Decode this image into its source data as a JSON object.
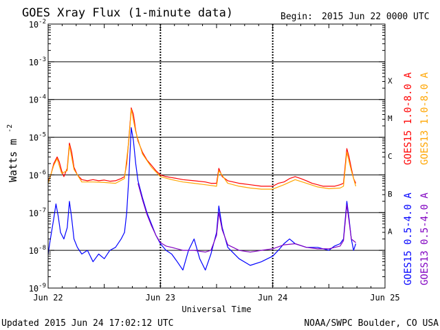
{
  "chart_data": {
    "type": "line",
    "title": "GOES Xray Flux (1-minute data)",
    "begin_label": "Begin:",
    "begin_value": "2015 Jun 22 0000 UTC",
    "xlabel": "Universal Time",
    "ylabel_base": "Watts m",
    "ylabel_exp": "-2",
    "y_scale": "log",
    "ylim": [
      1e-09,
      0.01
    ],
    "xlim_days": [
      0,
      3
    ],
    "x_ticks": [
      {
        "day": 0,
        "label": "Jun 22"
      },
      {
        "day": 1,
        "label": "Jun 23"
      },
      {
        "day": 2,
        "label": "Jun 24"
      },
      {
        "day": 3,
        "label": "Jun 25"
      }
    ],
    "y_ticks": [
      {
        "exp": -2,
        "label": "10",
        "sup": "-2"
      },
      {
        "exp": -3,
        "label": "10",
        "sup": "-3"
      },
      {
        "exp": -4,
        "label": "10",
        "sup": "-4"
      },
      {
        "exp": -5,
        "label": "10",
        "sup": "-5"
      },
      {
        "exp": -6,
        "label": "10",
        "sup": "-6"
      },
      {
        "exp": -7,
        "label": "10",
        "sup": "-7"
      },
      {
        "exp": -8,
        "label": "10",
        "sup": "-8"
      },
      {
        "exp": -9,
        "label": "10",
        "sup": "-9"
      }
    ],
    "flare_classes": [
      {
        "label": "X",
        "exp": -3.5
      },
      {
        "label": "M",
        "exp": -4.5
      },
      {
        "label": "C",
        "exp": -5.5
      },
      {
        "label": "B",
        "exp": -6.5
      },
      {
        "label": "A",
        "exp": -7.5
      }
    ],
    "grid": "horizontal per decade, dashed vertical per day",
    "legend_position": "right",
    "series": [
      {
        "name": "GOES15 1.0-8.0 A",
        "color": "#ff0000",
        "points": [
          [
            0.0,
            7e-07
          ],
          [
            0.02,
            9e-07
          ],
          [
            0.05,
            2e-06
          ],
          [
            0.08,
            3e-06
          ],
          [
            0.1,
            2.2e-06
          ],
          [
            0.12,
            1.3e-06
          ],
          [
            0.14,
            9e-07
          ],
          [
            0.17,
            1.5e-06
          ],
          [
            0.19,
            7e-06
          ],
          [
            0.21,
            4e-06
          ],
          [
            0.23,
            1.6e-06
          ],
          [
            0.26,
            1e-06
          ],
          [
            0.3,
            7.5e-07
          ],
          [
            0.35,
            7e-07
          ],
          [
            0.4,
            7.5e-07
          ],
          [
            0.45,
            7e-07
          ],
          [
            0.5,
            7.3e-07
          ],
          [
            0.55,
            6.8e-07
          ],
          [
            0.6,
            7e-07
          ],
          [
            0.65,
            8e-07
          ],
          [
            0.68,
            9e-07
          ],
          [
            0.7,
            2e-06
          ],
          [
            0.72,
            1e-05
          ],
          [
            0.74,
            6e-05
          ],
          [
            0.76,
            4e-05
          ],
          [
            0.78,
            1.5e-05
          ],
          [
            0.8,
            8e-06
          ],
          [
            0.84,
            4e-06
          ],
          [
            0.88,
            2.5e-06
          ],
          [
            0.92,
            1.8e-06
          ],
          [
            0.96,
            1.3e-06
          ],
          [
            1.0,
            1e-06
          ],
          [
            1.05,
            9e-07
          ],
          [
            1.1,
            8.5e-07
          ],
          [
            1.15,
            8e-07
          ],
          [
            1.2,
            7.5e-07
          ],
          [
            1.3,
            7e-07
          ],
          [
            1.4,
            6.5e-07
          ],
          [
            1.45,
            6e-07
          ],
          [
            1.5,
            6e-07
          ],
          [
            1.52,
            1.5e-06
          ],
          [
            1.55,
            9e-07
          ],
          [
            1.6,
            7e-07
          ],
          [
            1.7,
            6e-07
          ],
          [
            1.8,
            5.5e-07
          ],
          [
            1.9,
            5e-07
          ],
          [
            1.95,
            5e-07
          ],
          [
            2.0,
            5e-07
          ],
          [
            2.05,
            6e-07
          ],
          [
            2.1,
            6.5e-07
          ],
          [
            2.15,
            8e-07
          ],
          [
            2.2,
            9e-07
          ],
          [
            2.25,
            8e-07
          ],
          [
            2.3,
            7e-07
          ],
          [
            2.35,
            6e-07
          ],
          [
            2.4,
            5.5e-07
          ],
          [
            2.45,
            5e-07
          ],
          [
            2.5,
            5e-07
          ],
          [
            2.55,
            5e-07
          ],
          [
            2.6,
            5.5e-07
          ],
          [
            2.63,
            6e-07
          ],
          [
            2.66,
            5e-06
          ],
          [
            2.68,
            3e-06
          ],
          [
            2.7,
            1.5e-06
          ],
          [
            2.72,
            8e-07
          ],
          [
            2.74,
            6e-07
          ]
        ]
      },
      {
        "name": "GOES13 1.0-8.0 A",
        "color": "#ffa500",
        "points": [
          [
            0.0,
            6e-07
          ],
          [
            0.05,
            1.8e-06
          ],
          [
            0.08,
            2.7e-06
          ],
          [
            0.12,
            1.1e-06
          ],
          [
            0.17,
            1.3e-06
          ],
          [
            0.19,
            6e-06
          ],
          [
            0.23,
            1.4e-06
          ],
          [
            0.3,
            6.5e-07
          ],
          [
            0.4,
            6.5e-07
          ],
          [
            0.5,
            6.3e-07
          ],
          [
            0.6,
            6e-07
          ],
          [
            0.68,
            8e-07
          ],
          [
            0.72,
            9e-06
          ],
          [
            0.74,
            5.5e-05
          ],
          [
            0.78,
            1.4e-05
          ],
          [
            0.84,
            3.6e-06
          ],
          [
            0.92,
            1.6e-06
          ],
          [
            1.0,
            9e-07
          ],
          [
            1.1,
            7.5e-07
          ],
          [
            1.2,
            6.5e-07
          ],
          [
            1.3,
            6e-07
          ],
          [
            1.4,
            5.5e-07
          ],
          [
            1.5,
            5e-07
          ],
          [
            1.52,
            1.3e-06
          ],
          [
            1.6,
            6e-07
          ],
          [
            1.7,
            5e-07
          ],
          [
            1.8,
            4.5e-07
          ],
          [
            1.9,
            4.2e-07
          ],
          [
            2.0,
            4.2e-07
          ],
          [
            2.1,
            5.5e-07
          ],
          [
            2.2,
            7.5e-07
          ],
          [
            2.3,
            6e-07
          ],
          [
            2.4,
            4.8e-07
          ],
          [
            2.5,
            4.3e-07
          ],
          [
            2.6,
            4.5e-07
          ],
          [
            2.63,
            5e-07
          ],
          [
            2.66,
            4e-06
          ],
          [
            2.7,
            1.3e-06
          ],
          [
            2.74,
            5e-07
          ]
        ]
      },
      {
        "name": "GOES15 0.5-4.0 A",
        "color": "#0000ff",
        "points": [
          [
            0.0,
            8e-09
          ],
          [
            0.02,
            2e-08
          ],
          [
            0.05,
            7e-08
          ],
          [
            0.07,
            1.7e-07
          ],
          [
            0.09,
            8e-08
          ],
          [
            0.11,
            3e-08
          ],
          [
            0.14,
            2e-08
          ],
          [
            0.17,
            4e-08
          ],
          [
            0.19,
            2e-07
          ],
          [
            0.21,
            7e-08
          ],
          [
            0.23,
            2e-08
          ],
          [
            0.26,
            1.2e-08
          ],
          [
            0.3,
            8e-09
          ],
          [
            0.35,
            1e-08
          ],
          [
            0.4,
            5e-09
          ],
          [
            0.45,
            8e-09
          ],
          [
            0.5,
            6e-09
          ],
          [
            0.55,
            1e-08
          ],
          [
            0.6,
            1.2e-08
          ],
          [
            0.65,
            2e-08
          ],
          [
            0.68,
            3e-08
          ],
          [
            0.7,
            1e-07
          ],
          [
            0.72,
            1e-06
          ],
          [
            0.74,
            1.8e-05
          ],
          [
            0.76,
            8e-06
          ],
          [
            0.78,
            2e-06
          ],
          [
            0.8,
            7e-07
          ],
          [
            0.84,
            2.5e-07
          ],
          [
            0.88,
            1e-07
          ],
          [
            0.92,
            5e-08
          ],
          [
            0.96,
            2.5e-08
          ],
          [
            1.0,
            1.5e-08
          ],
          [
            1.05,
            1e-08
          ],
          [
            1.1,
            8e-09
          ],
          [
            1.15,
            5e-09
          ],
          [
            1.2,
            3e-09
          ],
          [
            1.25,
            1e-08
          ],
          [
            1.3,
            2e-08
          ],
          [
            1.35,
            6e-09
          ],
          [
            1.4,
            3e-09
          ],
          [
            1.45,
            8e-09
          ],
          [
            1.5,
            3e-08
          ],
          [
            1.52,
            1.5e-07
          ],
          [
            1.55,
            4e-08
          ],
          [
            1.6,
            1.2e-08
          ],
          [
            1.7,
            6e-09
          ],
          [
            1.8,
            4e-09
          ],
          [
            1.9,
            5e-09
          ],
          [
            2.0,
            7e-09
          ],
          [
            2.05,
            1e-08
          ],
          [
            2.1,
            1.5e-08
          ],
          [
            2.15,
            2e-08
          ],
          [
            2.2,
            1.5e-08
          ],
          [
            2.3,
            1.2e-08
          ],
          [
            2.4,
            1.2e-08
          ],
          [
            2.5,
            1e-08
          ],
          [
            2.55,
            1.3e-08
          ],
          [
            2.6,
            1.5e-08
          ],
          [
            2.63,
            2e-08
          ],
          [
            2.66,
            2e-07
          ],
          [
            2.68,
            7e-08
          ],
          [
            2.7,
            2e-08
          ],
          [
            2.72,
            1e-08
          ],
          [
            2.74,
            1.5e-08
          ]
        ]
      },
      {
        "name": "GOES13 0.5-4.0 A",
        "color": "#8000c0",
        "points": [
          [
            0.8,
            6e-07
          ],
          [
            0.84,
            2.2e-07
          ],
          [
            0.88,
            9e-08
          ],
          [
            0.92,
            4.5e-08
          ],
          [
            0.96,
            2.5e-08
          ],
          [
            1.0,
            1.6e-08
          ],
          [
            1.05,
            1.3e-08
          ],
          [
            1.1,
            1.2e-08
          ],
          [
            1.2,
            1e-08
          ],
          [
            1.3,
            1e-08
          ],
          [
            1.4,
            9e-09
          ],
          [
            1.45,
            1e-08
          ],
          [
            1.5,
            2.5e-08
          ],
          [
            1.52,
            1e-07
          ],
          [
            1.55,
            3.5e-08
          ],
          [
            1.6,
            1.4e-08
          ],
          [
            1.7,
            1e-08
          ],
          [
            1.8,
            9e-09
          ],
          [
            1.9,
            1e-08
          ],
          [
            2.0,
            1.1e-08
          ],
          [
            2.1,
            1.4e-08
          ],
          [
            2.2,
            1.5e-08
          ],
          [
            2.3,
            1.2e-08
          ],
          [
            2.4,
            1.1e-08
          ],
          [
            2.5,
            1.1e-08
          ],
          [
            2.6,
            1.3e-08
          ],
          [
            2.63,
            1.8e-08
          ],
          [
            2.66,
            1.6e-07
          ],
          [
            2.68,
            6e-08
          ],
          [
            2.7,
            2e-08
          ],
          [
            2.74,
            1.6e-08
          ]
        ]
      }
    ]
  },
  "footer": {
    "updated": "Updated 2015 Jun 24 17:02:12 UTC",
    "credit": "NOAA/SWPC Boulder, CO USA"
  }
}
